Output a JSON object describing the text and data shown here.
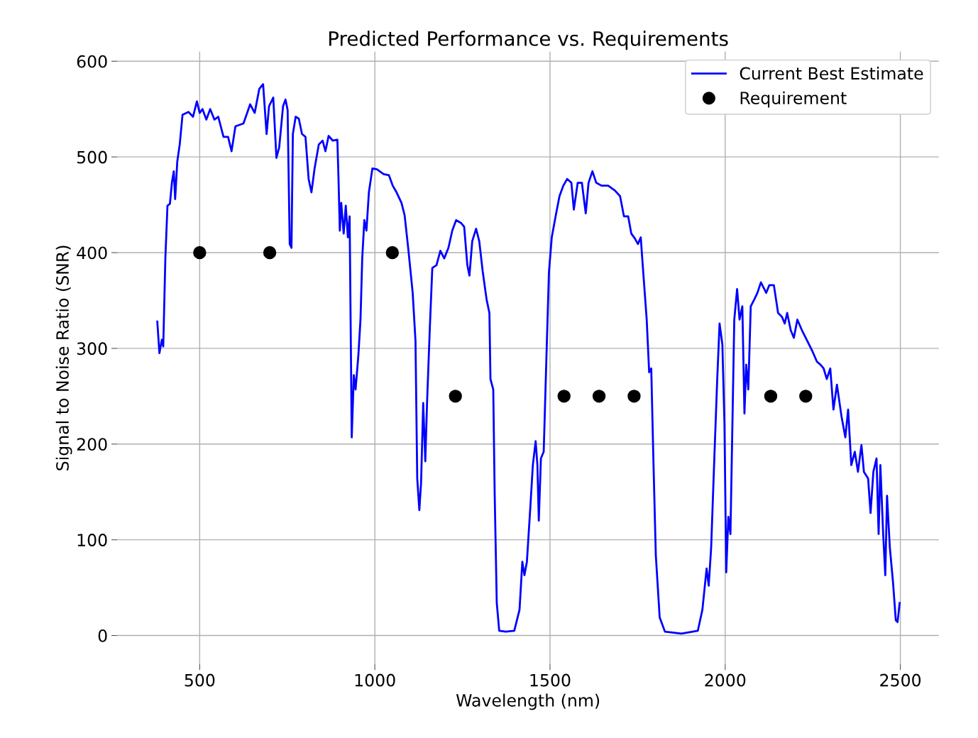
{
  "chart_data": {
    "type": "line",
    "title": "Predicted Performance vs. Requirements",
    "xlabel": "Wavelength (nm)",
    "ylabel": "Signal to Noise Ratio (SNR)",
    "xlim": [
      265,
      2610
    ],
    "ylim": [
      -30,
      610
    ],
    "xticks": [
      500,
      1000,
      1500,
      2000,
      2500
    ],
    "yticks": [
      0,
      100,
      200,
      300,
      400,
      500,
      600
    ],
    "grid": true,
    "legend": "top right",
    "series": [
      {
        "name": "Current Best Estimate",
        "color": "#0000ff",
        "marker": "none",
        "line_style": "solid",
        "x": [
          379,
          385,
          392,
          396,
          402,
          408,
          415,
          421,
          426,
          430,
          436,
          443,
          451,
          468,
          481,
          492,
          500,
          508,
          519,
          530,
          542,
          553,
          568,
          581,
          591,
          602,
          625,
          644,
          657,
          670,
          681,
          691,
          698,
          710,
          719,
          727,
          738,
          745,
          751,
          757,
          762,
          766,
          774,
          783,
          792,
          802,
          811,
          819,
          828,
          840,
          851,
          859,
          868,
          880,
          893,
          896,
          900,
          904,
          911,
          917,
          923,
          928,
          934,
          940,
          945,
          953,
          959,
          964,
          970,
          976,
          983,
          993,
          1006,
          1025,
          1040,
          1051,
          1062,
          1076,
          1085,
          1096,
          1108,
          1116,
          1121,
          1127,
          1132,
          1138,
          1144,
          1149,
          1157,
          1164,
          1176,
          1187,
          1198,
          1210,
          1221,
          1232,
          1246,
          1255,
          1264,
          1270,
          1278,
          1289,
          1298,
          1308,
          1319,
          1327,
          1330,
          1338,
          1342,
          1348,
          1355,
          1374,
          1398,
          1413,
          1421,
          1427,
          1434,
          1444,
          1451,
          1459,
          1464,
          1468,
          1474,
          1482,
          1490,
          1497,
          1505,
          1516,
          1527,
          1538,
          1549,
          1561,
          1568,
          1579,
          1591,
          1602,
          1610,
          1621,
          1632,
          1647,
          1666,
          1685,
          1700,
          1711,
          1723,
          1732,
          1742,
          1751,
          1759,
          1766,
          1776,
          1783,
          1789,
          1795,
          1802,
          1813,
          1828,
          1875,
          1922,
          1935,
          1947,
          1953,
          1960,
          1969,
          1977,
          1984,
          1992,
          1998,
          2003,
          2009,
          2015,
          2021,
          2026,
          2034,
          2041,
          2049,
          2055,
          2060,
          2066,
          2073,
          2083,
          2092,
          2102,
          2117,
          2126,
          2139,
          2151,
          2162,
          2170,
          2177,
          2187,
          2196,
          2206,
          2219,
          2234,
          2249,
          2262,
          2272,
          2281,
          2290,
          2300,
          2309,
          2319,
          2332,
          2343,
          2351,
          2360,
          2370,
          2379,
          2389,
          2396,
          2408,
          2415,
          2423,
          2432,
          2438,
          2443,
          2451,
          2457,
          2462,
          2470,
          2479,
          2487,
          2492,
          2498
        ],
        "values": [
          328,
          295,
          309,
          302,
          394,
          449,
          451,
          474,
          485,
          456,
          495,
          513,
          544,
          547,
          542,
          558,
          546,
          550,
          539,
          550,
          539,
          542,
          521,
          521,
          506,
          532,
          535,
          555,
          546,
          571,
          576,
          524,
          553,
          562,
          499,
          510,
          553,
          560,
          549,
          409,
          405,
          524,
          542,
          540,
          524,
          521,
          477,
          463,
          488,
          513,
          517,
          506,
          522,
          517,
          518,
          481,
          423,
          452,
          420,
          449,
          416,
          438,
          207,
          272,
          257,
          293,
          330,
          394,
          434,
          423,
          463,
          488,
          487,
          482,
          481,
          470,
          463,
          452,
          439,
          402,
          358,
          308,
          164,
          131,
          160,
          243,
          182,
          243,
          322,
          384,
          387,
          402,
          394,
          405,
          423,
          434,
          431,
          427,
          387,
          376,
          412,
          425,
          412,
          380,
          351,
          337,
          268,
          257,
          149,
          34,
          5,
          4,
          5,
          27,
          77,
          63,
          77,
          135,
          178,
          203,
          178,
          120,
          185,
          192,
          294,
          380,
          416,
          438,
          459,
          470,
          477,
          473,
          445,
          473,
          473,
          441,
          473,
          485,
          473,
          470,
          470,
          465,
          459,
          438,
          438,
          420,
          415,
          409,
          416,
          380,
          330,
          275,
          279,
          185,
          84,
          19,
          4,
          2,
          5,
          27,
          70,
          52,
          92,
          185,
          265,
          326,
          304,
          221,
          66,
          124,
          106,
          228,
          330,
          362,
          330,
          344,
          232,
          283,
          257,
          344,
          351,
          358,
          369,
          358,
          366,
          366,
          337,
          333,
          326,
          337,
          319,
          311,
          330,
          319,
          308,
          297,
          286,
          283,
          279,
          268,
          279,
          236,
          262,
          229,
          207,
          236,
          178,
          192,
          171,
          199,
          171,
          164,
          128,
          171,
          185,
          106,
          178,
          106,
          63,
          146,
          92,
          56,
          16,
          14,
          34
        ]
      },
      {
        "name": "Requirement",
        "type": "scatter",
        "color": "#000000",
        "marker": "circle",
        "x": [
          500,
          700,
          1050,
          1230,
          1540,
          1640,
          1740,
          2130,
          2230
        ],
        "values": [
          400,
          400,
          400,
          250,
          250,
          250,
          250,
          250,
          250
        ]
      }
    ]
  }
}
